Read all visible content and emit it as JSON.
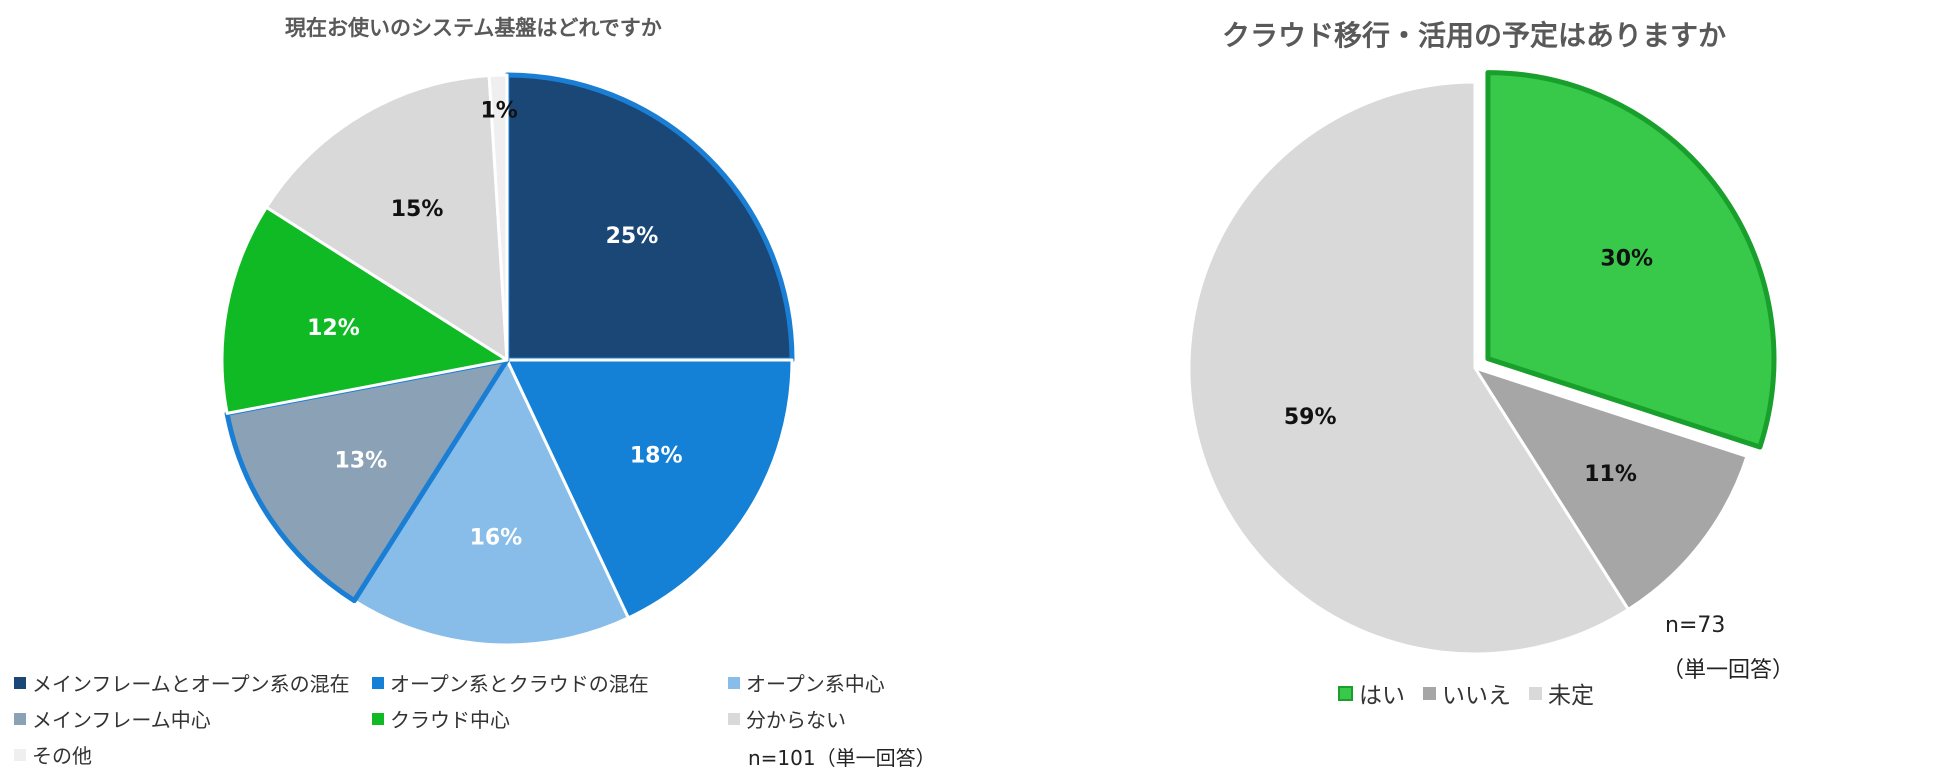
{
  "chart_data": [
    {
      "type": "pie",
      "title": "現在お使いのシステム基盤はどれですか",
      "categories": [
        "メインフレームとオープン系の混在",
        "オープン系とクラウドの混在",
        "オープン系中心",
        "メインフレーム中心",
        "クラウド中心",
        "分からない",
        "その他"
      ],
      "values": [
        25,
        18,
        16,
        13,
        12,
        15,
        1
      ],
      "labels": [
        "25%",
        "18%",
        "16%",
        "13%",
        "12%",
        "15%",
        "1%"
      ],
      "colors": [
        "#1a4775",
        "#1480d6",
        "#87bde8",
        "#8aa1b6",
        "#0fba25",
        "#d9d9d9",
        "#efefef"
      ],
      "label_colors": [
        "#ffffff",
        "#ffffff",
        "#ffffff",
        "#ffffff",
        "#ffffff",
        "#111111",
        "#111111"
      ],
      "legend_position": "bottom",
      "note": "n=101（単一回答）"
    },
    {
      "type": "pie",
      "title": "クラウド移行・活用の予定はありますか",
      "categories": [
        "はい",
        "いいえ",
        "未定"
      ],
      "values": [
        30,
        11,
        59
      ],
      "labels": [
        "30%",
        "11%",
        "59%"
      ],
      "colors": [
        "#38c94a",
        "#a6a6a6",
        "#d9d9d9"
      ],
      "label_colors": [
        "#111111",
        "#111111",
        "#111111"
      ],
      "legend_position": "bottom",
      "note_line1": "n=73",
      "note_line2": "（単一回答）"
    }
  ]
}
